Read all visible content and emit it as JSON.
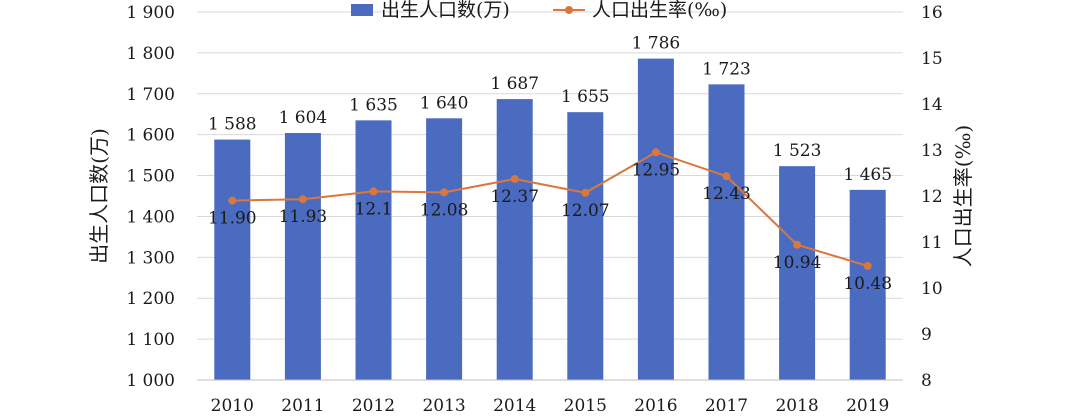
{
  "chart_data": {
    "type": "bar",
    "categories": [
      "2010",
      "2011",
      "2012",
      "2013",
      "2014",
      "2015",
      "2016",
      "2017",
      "2018",
      "2019"
    ],
    "series": [
      {
        "name": "出生人口数(万)",
        "type": "bar",
        "axis": "left",
        "color": "#4a6bbf",
        "values": [
          1588,
          1604,
          1635,
          1640,
          1687,
          1655,
          1786,
          1723,
          1523,
          1465
        ],
        "labels": [
          "1 588",
          "1 604",
          "1 635",
          "1 640",
          "1 687",
          "1 655",
          "1 786",
          "1 723",
          "1 523",
          "1 465"
        ]
      },
      {
        "name": "人口出生率(‰)",
        "type": "line",
        "axis": "right",
        "color": "#d9773f",
        "values": [
          11.9,
          11.93,
          12.1,
          12.08,
          12.37,
          12.07,
          12.95,
          12.43,
          10.94,
          10.48
        ],
        "labels": [
          "11.90",
          "11.93",
          "12.1",
          "12.08",
          "12.37",
          "12.07",
          "12.95",
          "12.43",
          "10.94",
          "10.48"
        ]
      }
    ],
    "y_left": {
      "label": "出生人口数(万)",
      "lim": [
        1000,
        1900
      ],
      "ticks": [
        1000,
        1100,
        1200,
        1300,
        1400,
        1500,
        1600,
        1700,
        1800,
        1900
      ],
      "tick_labels": [
        "1 000",
        "1 100",
        "1 200",
        "1 300",
        "1 400",
        "1 500",
        "1 600",
        "1 700",
        "1 800",
        "1 900"
      ]
    },
    "y_right": {
      "label": "人口出生率(‰)",
      "lim": [
        8,
        16
      ],
      "ticks": [
        8,
        9,
        10,
        11,
        12,
        13,
        14,
        15,
        16
      ],
      "tick_labels": [
        "8",
        "9",
        "10",
        "11",
        "12",
        "13",
        "14",
        "15",
        "16"
      ]
    },
    "legend_position": "top-center",
    "grid": "horizontal"
  }
}
